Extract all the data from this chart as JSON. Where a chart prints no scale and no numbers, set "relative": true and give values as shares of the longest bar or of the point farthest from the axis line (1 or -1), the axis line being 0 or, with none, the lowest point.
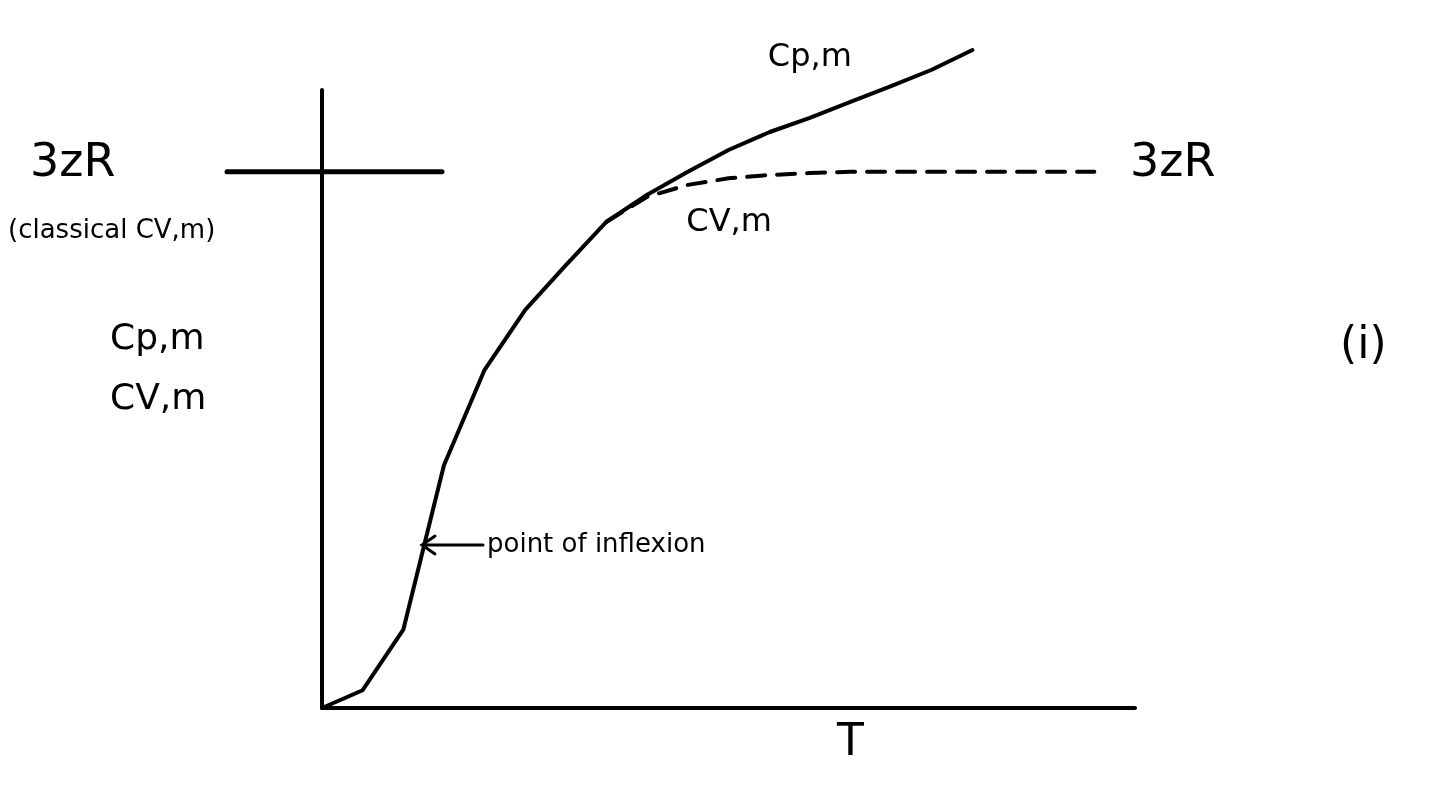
{
  "chart_data": {
    "type": "line",
    "relative": true,
    "xlabel": "T",
    "ylabel": "Cp,m\nCV,m",
    "categories": [
      null,
      null,
      null,
      null,
      null,
      null,
      null,
      null,
      null,
      null,
      null,
      null,
      null,
      null,
      null,
      null,
      null,
      null,
      null,
      null,
      null
    ],
    "series": [
      {
        "name": "Cp,m",
        "color": "#000000",
        "line_style": "solid",
        "values": [
          0,
          0.027,
          0.119,
          0.369,
          0.514,
          0.605,
          0.673,
          0.739,
          0.78,
          0.815,
          0.848,
          0.875,
          0.897,
          0.921,
          0.945,
          0.97,
          1,
          null,
          null,
          null,
          null
        ]
      },
      {
        "name": "CV,m",
        "color": "#000000",
        "line_style": "dashed",
        "values": [
          null,
          null,
          null,
          null,
          null,
          null,
          null,
          0.739,
          0.777,
          0.795,
          0.805,
          0.81,
          0.813,
          0.815,
          0.815,
          0.815,
          0.815,
          0.815,
          0.815,
          0.815,
          null
        ]
      }
    ],
    "ref_lines": [
      {
        "axis": "y",
        "value": 0.815,
        "label": "3zR",
        "color": "#000000"
      }
    ],
    "annotations": [
      "(classical CV,m)",
      "3zR",
      "point of inflexion",
      "(i)"
    ],
    "marker": "none",
    "legend": false
  }
}
